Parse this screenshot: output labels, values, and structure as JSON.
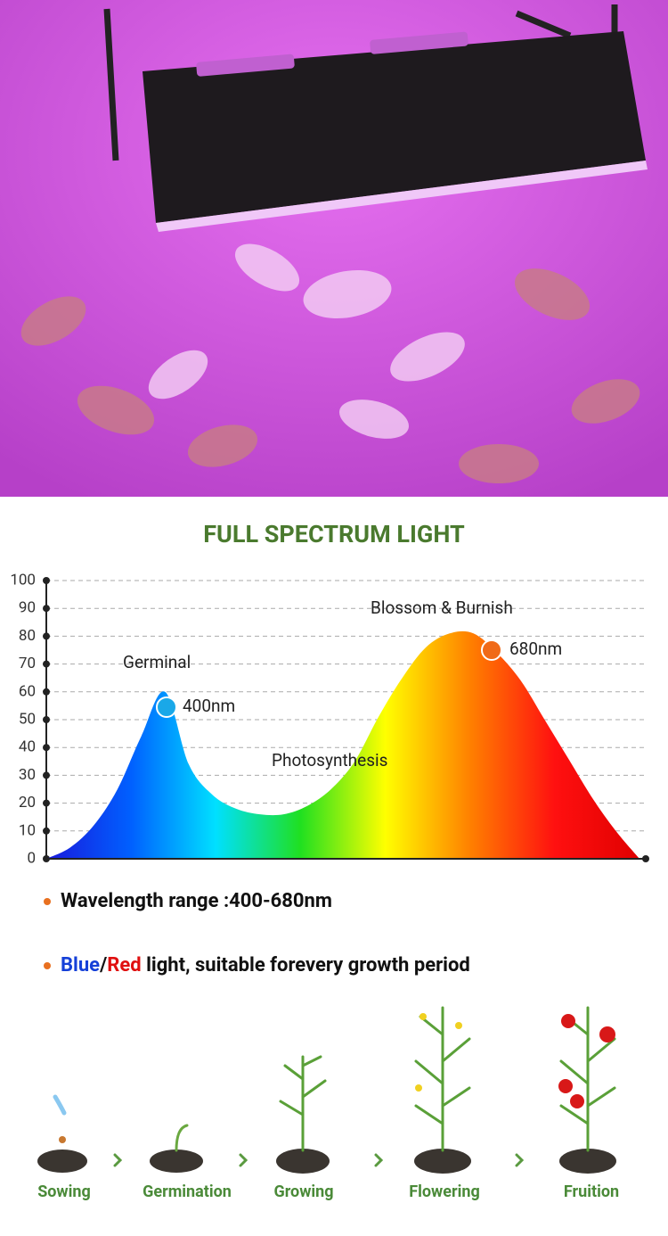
{
  "header": {
    "title": "FULL SPECTRUM LIGHT"
  },
  "chart_data": {
    "type": "area",
    "categories": [
      null,
      null,
      null,
      null,
      null,
      null,
      null,
      null,
      null,
      null,
      null,
      null,
      null,
      null,
      null,
      null,
      null,
      null,
      null,
      null,
      null,
      null,
      null,
      null,
      null,
      null
    ],
    "values": [
      0,
      4,
      12,
      25,
      44,
      60,
      34,
      23,
      18,
      16,
      16,
      19,
      25,
      35,
      51,
      65,
      76,
      81,
      81,
      74,
      64,
      50,
      36,
      22,
      10,
      0
    ],
    "ylim": [
      0,
      100
    ],
    "yticks": [
      0,
      10,
      20,
      30,
      40,
      50,
      60,
      70,
      80,
      90,
      100
    ],
    "grid": true,
    "colors": [
      "#1a1adc",
      "#0060ff",
      "#00e0ff",
      "#20e020",
      "#ffff00",
      "#ff8000",
      "#ff1010",
      "#e00000"
    ],
    "annotations": [
      "Germinal",
      "400nm",
      "Photosynthesis",
      "Blossom & Burnish",
      "680nm"
    ]
  },
  "bullets": [
    {
      "segments": [
        "Wavelength range :400-680nm"
      ]
    },
    {
      "segments": [
        "Blue",
        "/",
        "Red",
        " light, suitable forevery growth period"
      ]
    }
  ],
  "stages": [
    "Sowing",
    "Germination",
    "Growing",
    "Flowering",
    "Fruition"
  ]
}
